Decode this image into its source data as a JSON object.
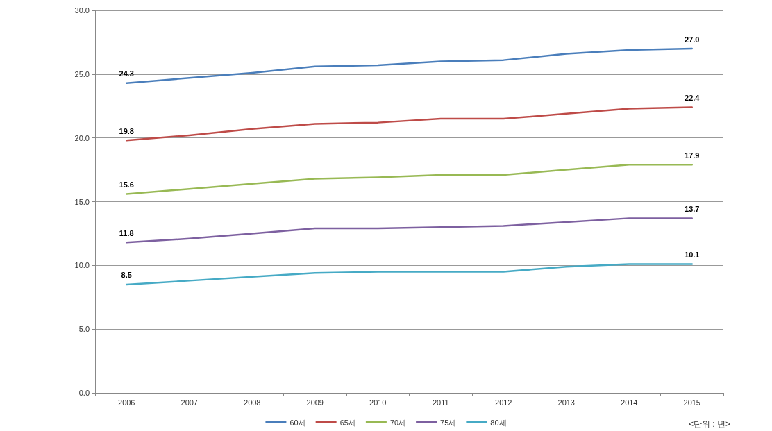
{
  "chart_data": {
    "type": "line",
    "categories": [
      "2006",
      "2007",
      "2008",
      "2009",
      "2010",
      "2011",
      "2012",
      "2013",
      "2014",
      "2015"
    ],
    "series": [
      {
        "name": "60세",
        "color": "#4a7ebb",
        "values": [
          24.3,
          24.7,
          25.1,
          25.6,
          25.7,
          26.0,
          26.1,
          26.6,
          26.9,
          27.0
        ],
        "value_labels": [
          "24.3",
          null,
          null,
          null,
          null,
          null,
          null,
          null,
          null,
          "27.0"
        ]
      },
      {
        "name": "65세",
        "color": "#be4b48",
        "values": [
          19.8,
          20.2,
          20.7,
          21.1,
          21.2,
          21.5,
          21.5,
          21.9,
          22.3,
          22.4
        ],
        "value_labels": [
          "19.8",
          null,
          null,
          null,
          null,
          null,
          null,
          null,
          null,
          "22.4"
        ]
      },
      {
        "name": "70세",
        "color": "#98b954",
        "values": [
          15.6,
          16.0,
          16.4,
          16.8,
          16.9,
          17.1,
          17.1,
          17.5,
          17.9,
          17.9
        ],
        "value_labels": [
          "15.6",
          null,
          null,
          null,
          null,
          null,
          null,
          null,
          null,
          "17.9"
        ]
      },
      {
        "name": "75세",
        "color": "#7d60a0",
        "values": [
          11.8,
          12.1,
          12.5,
          12.9,
          12.9,
          13.0,
          13.1,
          13.4,
          13.7,
          13.7
        ],
        "value_labels": [
          "11.8",
          null,
          null,
          null,
          null,
          null,
          null,
          null,
          null,
          "13.7"
        ]
      },
      {
        "name": "80세",
        "color": "#46aac5",
        "values": [
          8.5,
          8.8,
          9.1,
          9.4,
          9.5,
          9.5,
          9.5,
          9.9,
          10.1,
          10.1
        ],
        "value_labels": [
          "8.5",
          null,
          null,
          null,
          null,
          null,
          null,
          null,
          null,
          "10.1"
        ]
      }
    ],
    "ylim": [
      0,
      30
    ],
    "yticks": [
      {
        "value": 0,
        "label": "0.0"
      },
      {
        "value": 5,
        "label": "5.0"
      },
      {
        "value": 10,
        "label": "10.0"
      },
      {
        "value": 15,
        "label": "15.0"
      },
      {
        "value": 20,
        "label": "20.0"
      },
      {
        "value": 25,
        "label": "25.0"
      },
      {
        "value": 30,
        "label": "30.0"
      }
    ],
    "grid": "y",
    "legend": "bottom",
    "marker": "none",
    "line_style": "solid",
    "annotations": [
      "<단위 : 년>"
    ]
  }
}
